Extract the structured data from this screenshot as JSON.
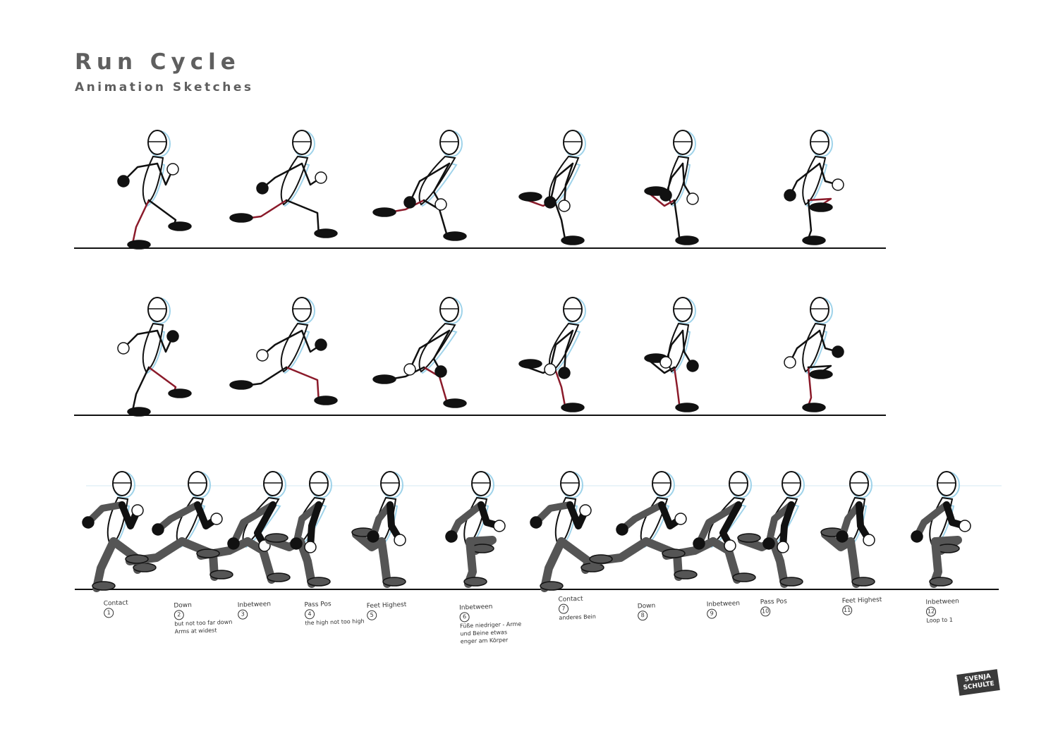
{
  "header": {
    "title": "Run Cycle",
    "subtitle": "Animation Sketches"
  },
  "frame_labels": [
    {
      "name": "Contact",
      "number": "1",
      "note": ""
    },
    {
      "name": "Down",
      "number": "2",
      "note": "but not too far down Arms at widest"
    },
    {
      "name": "Inbetween",
      "number": "3",
      "note": ""
    },
    {
      "name": "Pass Pos",
      "number": "4",
      "note": "the high not too high"
    },
    {
      "name": "Feet Highest",
      "number": "5",
      "note": ""
    },
    {
      "name": "Inbetween",
      "number": "6",
      "note": "Füße niedriger - Arme und Beine etwas enger am Körper"
    },
    {
      "name": "Contact",
      "number": "7",
      "note": "anderes Bein"
    },
    {
      "name": "Down",
      "number": "8",
      "note": ""
    },
    {
      "name": "Inbetween",
      "number": "9",
      "note": ""
    },
    {
      "name": "Pass Pos",
      "number": "10",
      "note": ""
    },
    {
      "name": "Feet Highest",
      "number": "11",
      "note": ""
    },
    {
      "name": "Inbetween",
      "number": "12",
      "note": "Loop to 1"
    }
  ],
  "signature": {
    "line1": "SVENJA",
    "line2": "SCHULTE"
  },
  "colors": {
    "title": "#5f5f5f",
    "ink": "#111111",
    "sketch_blue": "#9fd3ea",
    "leg_red": "#8b1a2a",
    "shade_grey": "#555555"
  }
}
